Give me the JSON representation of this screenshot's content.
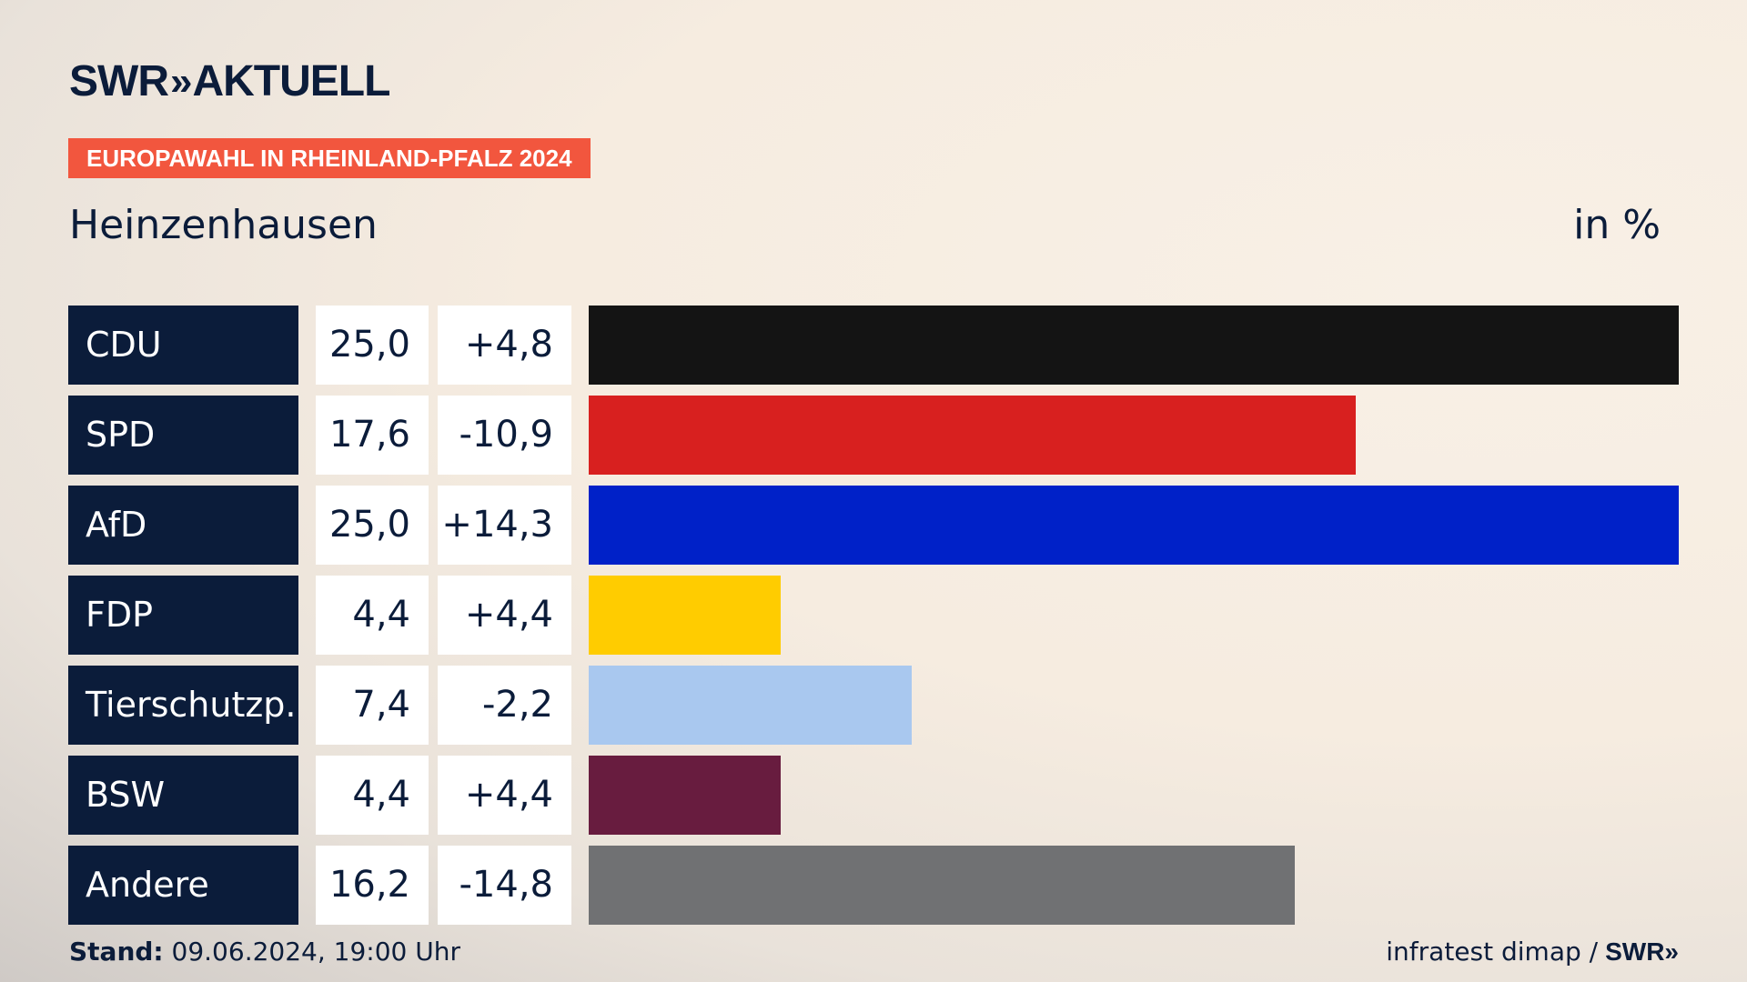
{
  "header": {
    "brand": "SWR",
    "brand_chevron": "»",
    "brand_suffix": "AKTUELL",
    "tag": "EUROPAWAHL IN RHEINLAND-PFALZ 2024",
    "place": "Heinzenhausen",
    "unit": "in %"
  },
  "chart_data": {
    "type": "bar",
    "categories": [
      "CDU",
      "SPD",
      "AfD",
      "FDP",
      "Tierschutzp.",
      "BSW",
      "Andere"
    ],
    "values": [
      25.0,
      17.6,
      25.0,
      4.4,
      7.4,
      4.4,
      16.2
    ],
    "value_labels": [
      "25,0",
      "17,6",
      "25,0",
      "4,4",
      "7,4",
      "4,4",
      "16,2"
    ],
    "diff_labels": [
      "+4,8",
      "-10,9",
      "+14,3",
      "+4,4",
      "-2,2",
      "+4,4",
      "-14,8"
    ],
    "colors": [
      "#141414",
      "#d8201f",
      "#0021c8",
      "#ffcc00",
      "#a9c8ef",
      "#681c3f",
      "#707173"
    ],
    "xlim": [
      0,
      25
    ]
  },
  "footer": {
    "stand_label": "Stand:",
    "stand_value": "09.06.2024, 19:00 Uhr",
    "source": "infratest dimap /",
    "source_brand": "SWR»"
  }
}
